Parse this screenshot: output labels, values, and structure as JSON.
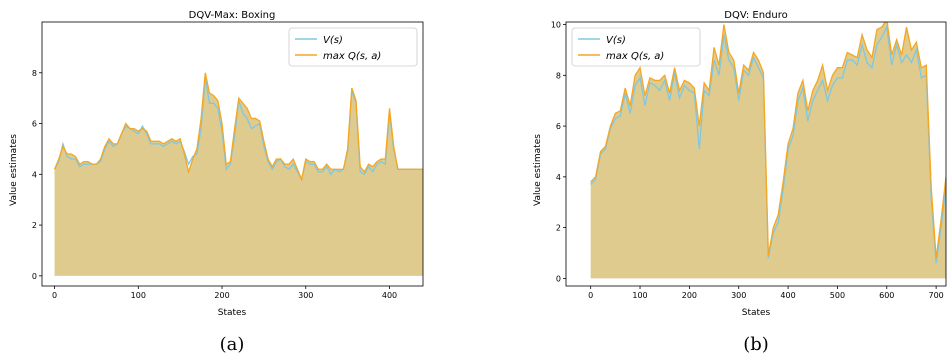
{
  "colors": {
    "v_line": "#7ec8e3",
    "q_line": "#f5a623",
    "fill": "#dfcb8e",
    "axis": "#000000"
  },
  "captions": [
    "(a)",
    "(b)"
  ],
  "chart_data": [
    {
      "type": "area",
      "title": "DQV-Max: Boxing",
      "xlabel": "States",
      "ylabel": "Value estimates",
      "xlim": [
        -15,
        440
      ],
      "ylim": [
        -0.4,
        10
      ],
      "xticks": [
        0,
        100,
        200,
        300,
        400
      ],
      "yticks": [
        0,
        2,
        4,
        6,
        8
      ],
      "legend": "top-right",
      "series": [
        {
          "name": "V(s)",
          "legend_label": "V(s)"
        },
        {
          "name": "max Q(s,a)",
          "legend_label": "max Q(s, a)"
        }
      ],
      "x": [
        0,
        5,
        10,
        15,
        20,
        25,
        30,
        35,
        40,
        45,
        50,
        55,
        60,
        65,
        70,
        75,
        80,
        85,
        90,
        95,
        100,
        105,
        110,
        115,
        120,
        125,
        130,
        135,
        140,
        145,
        150,
        155,
        160,
        165,
        170,
        175,
        180,
        185,
        190,
        195,
        200,
        205,
        210,
        215,
        220,
        225,
        230,
        235,
        240,
        245,
        250,
        255,
        260,
        265,
        270,
        275,
        280,
        285,
        290,
        295,
        300,
        305,
        310,
        315,
        320,
        325,
        330,
        335,
        340,
        345,
        350,
        355,
        360,
        365,
        370,
        375,
        380,
        385,
        390,
        395,
        400,
        405,
        410,
        415,
        420,
        425,
        430,
        435,
        440
      ],
      "v_values": [
        4.2,
        4.5,
        5.2,
        4.7,
        4.6,
        4.6,
        4.3,
        4.4,
        4.4,
        4.4,
        4.4,
        4.5,
        5.0,
        5.3,
        5.1,
        5.2,
        5.6,
        5.9,
        5.8,
        5.7,
        5.6,
        5.9,
        5.6,
        5.2,
        5.2,
        5.2,
        5.1,
        5.2,
        5.3,
        5.2,
        5.3,
        4.9,
        4.4,
        4.7,
        4.8,
        5.8,
        7.8,
        6.8,
        6.8,
        6.6,
        5.7,
        4.2,
        4.4,
        5.5,
        6.9,
        6.4,
        6.2,
        5.8,
        5.9,
        6.0,
        5.1,
        4.5,
        4.2,
        4.5,
        4.6,
        4.3,
        4.2,
        4.4,
        4.1,
        3.8,
        4.5,
        4.4,
        4.4,
        4.1,
        4.1,
        4.3,
        4.0,
        4.2,
        4.1,
        4.2,
        4.9,
        7.3,
        6.8,
        4.1,
        4.0,
        4.3,
        4.1,
        4.4,
        4.5,
        4.4,
        6.4,
        5.0,
        4.2,
        4.2,
        4.2,
        4.2,
        4.2,
        4.2,
        4.2
      ],
      "q_values": [
        4.2,
        4.6,
        5.1,
        4.8,
        4.8,
        4.7,
        4.4,
        4.5,
        4.5,
        4.4,
        4.4,
        4.6,
        5.1,
        5.4,
        5.2,
        5.2,
        5.6,
        6.0,
        5.8,
        5.8,
        5.7,
        5.8,
        5.7,
        5.3,
        5.3,
        5.3,
        5.2,
        5.3,
        5.4,
        5.3,
        5.4,
        4.8,
        4.1,
        4.6,
        5.0,
        6.2,
        8.0,
        7.2,
        7.1,
        6.9,
        6.0,
        4.4,
        4.5,
        5.8,
        7.0,
        6.8,
        6.6,
        6.2,
        6.2,
        6.1,
        5.3,
        4.6,
        4.3,
        4.6,
        4.6,
        4.4,
        4.4,
        4.6,
        4.2,
        3.8,
        4.6,
        4.5,
        4.5,
        4.2,
        4.2,
        4.4,
        4.2,
        4.2,
        4.2,
        4.2,
        5.0,
        7.4,
        6.9,
        4.3,
        4.1,
        4.4,
        4.3,
        4.5,
        4.6,
        4.6,
        6.6,
        5.1,
        4.2,
        4.2,
        4.2,
        4.2,
        4.2,
        4.2,
        4.2
      ]
    },
    {
      "type": "area",
      "title": "DQV: Enduro",
      "xlabel": "States",
      "ylabel": "Value estimates",
      "xlim": [
        -50,
        720
      ],
      "ylim": [
        -0.3,
        10.1
      ],
      "xticks": [
        0,
        100,
        200,
        300,
        400,
        500,
        600,
        700
      ],
      "yticks": [
        0,
        2,
        4,
        6,
        8,
        10
      ],
      "legend": "top-left",
      "series": [
        {
          "name": "V(s)",
          "legend_label": "V(s)"
        },
        {
          "name": "max Q(s,a)",
          "legend_label": "max Q(s, a)"
        }
      ],
      "x": [
        0,
        10,
        20,
        30,
        40,
        50,
        60,
        70,
        80,
        90,
        100,
        110,
        120,
        130,
        140,
        150,
        160,
        170,
        180,
        190,
        200,
        210,
        220,
        230,
        240,
        250,
        260,
        270,
        280,
        290,
        300,
        310,
        320,
        330,
        340,
        350,
        360,
        370,
        380,
        390,
        400,
        410,
        420,
        430,
        440,
        450,
        460,
        470,
        480,
        490,
        500,
        510,
        520,
        530,
        540,
        550,
        560,
        570,
        580,
        590,
        600,
        610,
        620,
        630,
        640,
        650,
        660,
        670,
        680,
        690,
        700,
        710,
        720
      ],
      "v_values": [
        3.7,
        3.9,
        4.9,
        5.1,
        5.9,
        6.3,
        6.4,
        7.3,
        6.5,
        7.6,
        7.9,
        6.8,
        7.7,
        7.6,
        7.4,
        7.8,
        7.0,
        8.1,
        7.1,
        7.6,
        7.4,
        7.3,
        5.1,
        7.4,
        7.2,
        8.6,
        8.0,
        9.6,
        8.6,
        8.3,
        7.0,
        8.2,
        8.0,
        8.7,
        8.3,
        7.9,
        0.8,
        1.8,
        2.2,
        3.5,
        5.1,
        5.6,
        7.0,
        7.5,
        6.2,
        7.0,
        7.4,
        7.8,
        7.0,
        7.6,
        7.9,
        7.9,
        8.6,
        8.6,
        8.4,
        9.2,
        8.5,
        8.3,
        9.2,
        9.5,
        9.9,
        8.4,
        9.2,
        8.5,
        8.8,
        8.5,
        9.0,
        7.9,
        8.0,
        3.2,
        0.6,
        2.0,
        3.6
      ],
      "q_values": [
        3.8,
        4.0,
        5.0,
        5.2,
        6.0,
        6.5,
        6.6,
        7.5,
        6.8,
        8.0,
        8.3,
        7.2,
        7.9,
        7.8,
        7.8,
        8.0,
        7.3,
        8.3,
        7.4,
        7.8,
        7.7,
        7.5,
        6.0,
        7.7,
        7.4,
        9.1,
        8.4,
        10.0,
        8.9,
        8.6,
        7.3,
        8.4,
        8.2,
        8.9,
        8.6,
        8.1,
        0.9,
        2.0,
        2.5,
        3.8,
        5.3,
        5.9,
        7.3,
        7.8,
        6.6,
        7.4,
        7.8,
        8.4,
        7.4,
        8.0,
        8.3,
        8.3,
        8.9,
        8.8,
        8.7,
        9.6,
        9.0,
        8.7,
        9.8,
        9.9,
        10.2,
        8.8,
        9.4,
        8.8,
        9.9,
        9.0,
        9.3,
        8.3,
        8.4,
        3.6,
        0.8,
        2.3,
        4.0
      ]
    }
  ]
}
